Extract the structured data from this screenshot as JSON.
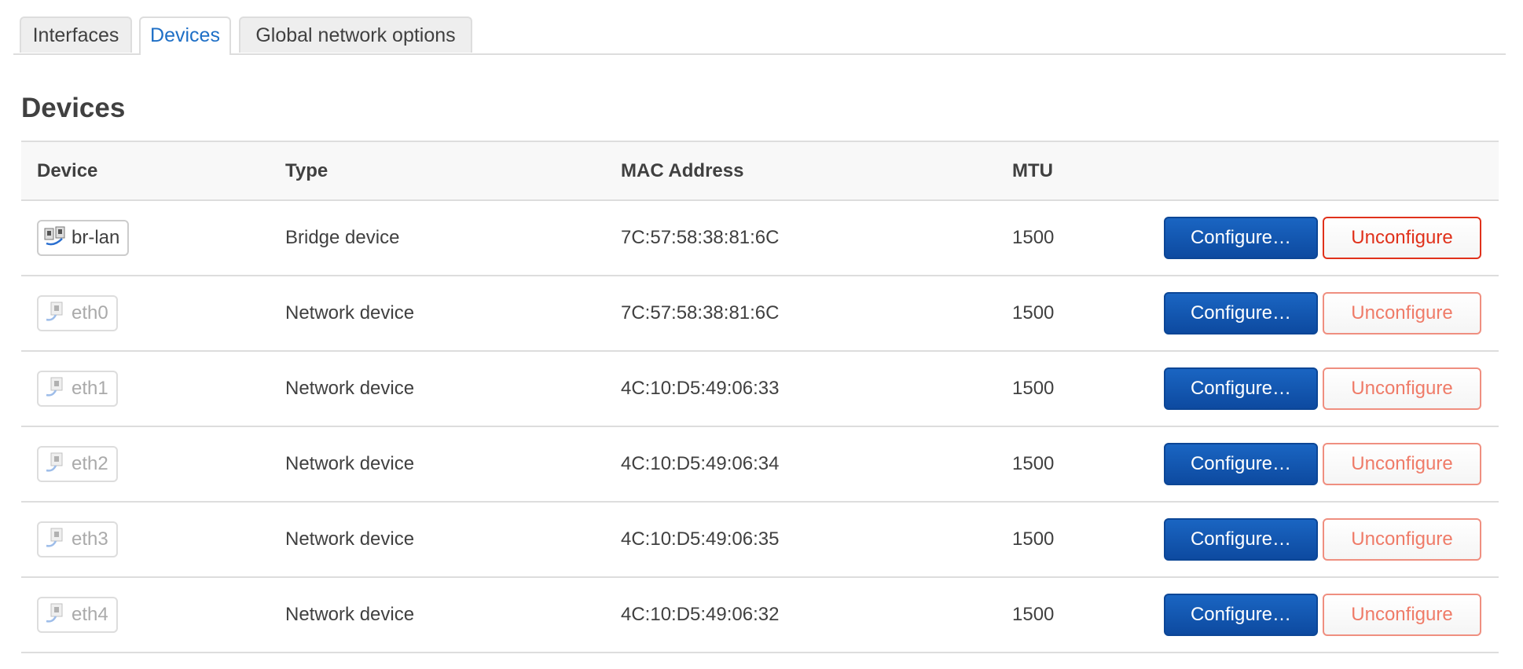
{
  "tabs": [
    {
      "label": "Interfaces",
      "active": false
    },
    {
      "label": "Devices",
      "active": true
    },
    {
      "label": "Global network options",
      "active": false
    }
  ],
  "section_title": "Devices",
  "table": {
    "headers": [
      "Device",
      "Type",
      "MAC Address",
      "MTU"
    ],
    "rows": [
      {
        "device": "br-lan",
        "icon": "bridge-icon",
        "active": true,
        "type": "Bridge device",
        "mac": "7C:57:58:38:81:6C",
        "mtu": "1500",
        "configure": "Configure…",
        "unconfigure": "Unconfigure"
      },
      {
        "device": "eth0",
        "icon": "ethernet-icon",
        "active": false,
        "type": "Network device",
        "mac": "7C:57:58:38:81:6C",
        "mtu": "1500",
        "configure": "Configure…",
        "unconfigure": "Unconfigure"
      },
      {
        "device": "eth1",
        "icon": "ethernet-icon",
        "active": false,
        "type": "Network device",
        "mac": "4C:10:D5:49:06:33",
        "mtu": "1500",
        "configure": "Configure…",
        "unconfigure": "Unconfigure"
      },
      {
        "device": "eth2",
        "icon": "ethernet-icon",
        "active": false,
        "type": "Network device",
        "mac": "4C:10:D5:49:06:34",
        "mtu": "1500",
        "configure": "Configure…",
        "unconfigure": "Unconfigure"
      },
      {
        "device": "eth3",
        "icon": "ethernet-icon",
        "active": false,
        "type": "Network device",
        "mac": "4C:10:D5:49:06:35",
        "mtu": "1500",
        "configure": "Configure…",
        "unconfigure": "Unconfigure"
      },
      {
        "device": "eth4",
        "icon": "ethernet-icon",
        "active": false,
        "type": "Network device",
        "mac": "4C:10:D5:49:06:32",
        "mtu": "1500",
        "configure": "Configure…",
        "unconfigure": "Unconfigure"
      }
    ]
  },
  "colors": {
    "accent": "#1e6fc6",
    "primary_button": "#0d4aa0",
    "danger": "#e0311b"
  }
}
